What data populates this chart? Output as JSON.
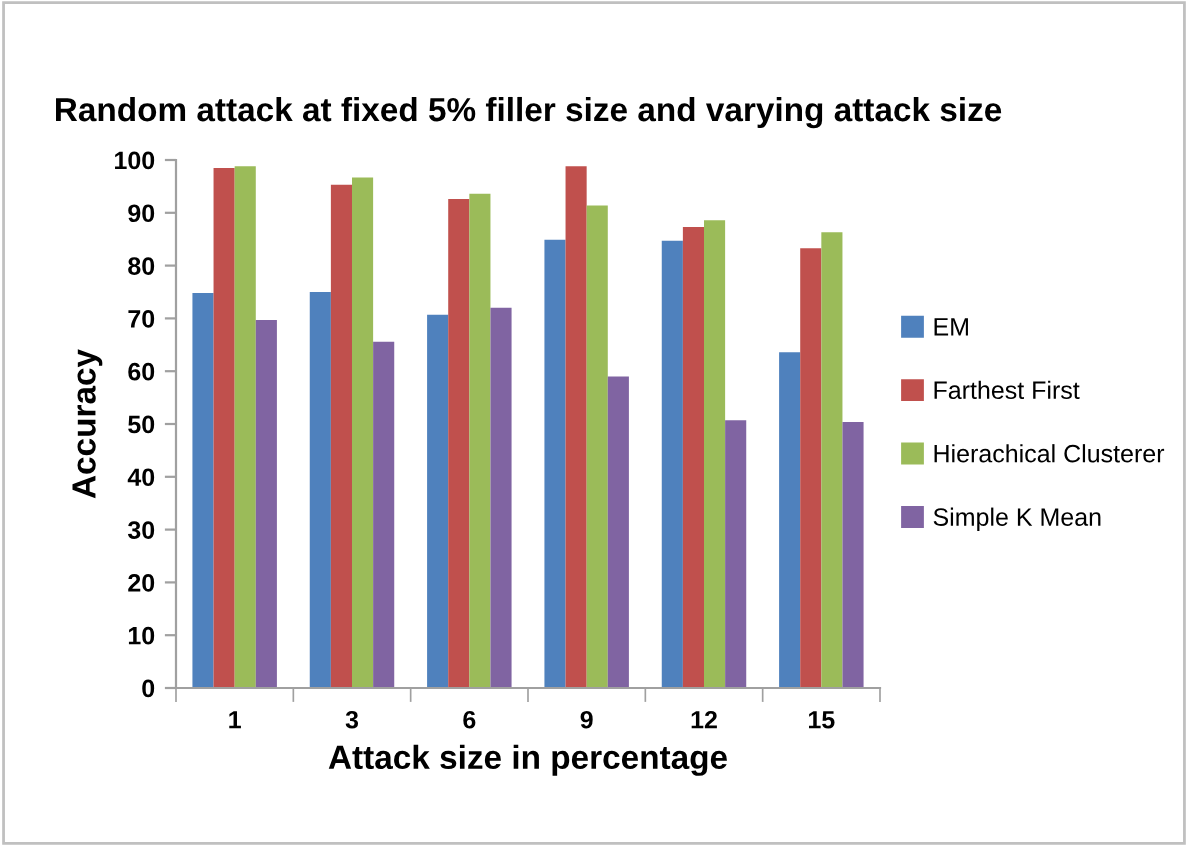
{
  "chart_data": {
    "type": "bar",
    "title": "Random attack at fixed 5% filler size and varying attack size",
    "xlabel": "Attack size in percentage",
    "ylabel": "Accuracy",
    "categories": [
      "1",
      "3",
      "6",
      "9",
      "12",
      "15"
    ],
    "series": [
      {
        "name": "EM",
        "color": "#4f81bd",
        "values": [
          74.8,
          75,
          70.7,
          84.9,
          84.7,
          63.6
        ]
      },
      {
        "name": "Farthest First",
        "color": "#c0504d",
        "values": [
          98.5,
          95.3,
          92.6,
          98.8,
          87.3,
          83.3
        ]
      },
      {
        "name": "Hierachical Clusterer",
        "color": "#9bbb59",
        "values": [
          98.8,
          96.7,
          93.6,
          91.4,
          88.6,
          86.3
        ]
      },
      {
        "name": "Simple K Mean",
        "color": "#8064a2",
        "values": [
          69.7,
          65.6,
          72,
          59,
          50.7,
          50.4
        ]
      }
    ],
    "ylim": [
      0,
      100
    ],
    "yticks": [
      0,
      10,
      20,
      30,
      40,
      50,
      60,
      70,
      80,
      90,
      100
    ],
    "grid": false,
    "legend": "right"
  }
}
